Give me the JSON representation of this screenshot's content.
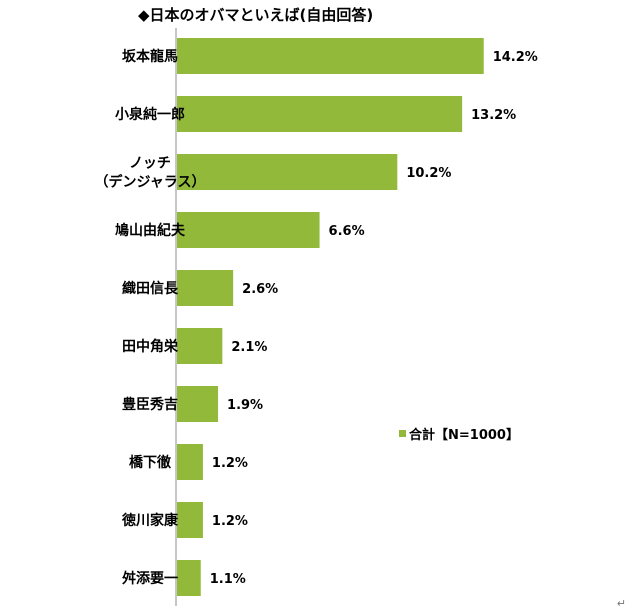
{
  "title": "◆日本のオバマといえば(自由回答)",
  "legend": {
    "label": "合計【N=1000】"
  },
  "end_mark": "↵",
  "colors": {
    "bar": "#92b93a"
  },
  "chart_data": {
    "type": "bar",
    "orientation": "horizontal",
    "categories": [
      "坂本龍馬",
      "小泉純一郎",
      "ノッチ\n（デンジャラス）",
      "鳩山由紀夫",
      "織田信長",
      "田中角栄",
      "豊臣秀吉",
      "橋下徹",
      "徳川家康",
      "舛添要一"
    ],
    "series": [
      {
        "name": "合計【N=1000】",
        "values": [
          14.2,
          13.2,
          10.2,
          6.6,
          2.6,
          2.1,
          1.9,
          1.2,
          1.2,
          1.1
        ]
      }
    ],
    "value_labels": [
      "14.2%",
      "13.2%",
      "10.2%",
      "6.6%",
      "2.6%",
      "2.1%",
      "1.9%",
      "1.2%",
      "1.2%",
      "1.1%"
    ],
    "xlim": [
      0,
      16
    ],
    "grid": false,
    "legend_position": "right"
  }
}
